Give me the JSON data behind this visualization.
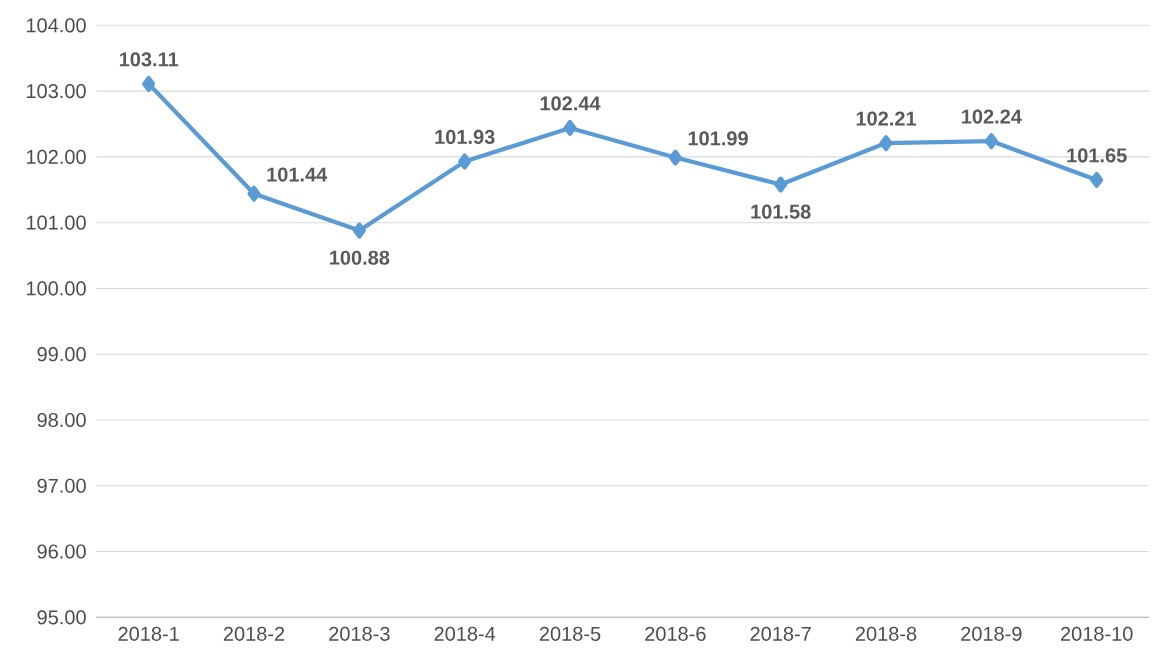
{
  "chart_data": {
    "type": "line",
    "categories": [
      "2018-1",
      "2018-2",
      "2018-3",
      "2018-4",
      "2018-5",
      "2018-6",
      "2018-7",
      "2018-8",
      "2018-9",
      "2018-10"
    ],
    "values": [
      103.11,
      101.44,
      100.88,
      101.93,
      102.44,
      101.99,
      101.58,
      102.21,
      102.24,
      101.65
    ],
    "color": "#5b9bd5",
    "marker": "diamond",
    "line_style": "solid",
    "data_labels": true,
    "grid": "y",
    "ylim": [
      95,
      104
    ],
    "yticks": [
      {
        "value": 95,
        "label": "95.00"
      },
      {
        "value": 96,
        "label": "96.00"
      },
      {
        "value": 97,
        "label": "97.00"
      },
      {
        "value": 98,
        "label": "98.00"
      },
      {
        "value": 99,
        "label": "99.00"
      },
      {
        "value": 100,
        "label": "100.00"
      },
      {
        "value": 101,
        "label": "101.00"
      },
      {
        "value": 102,
        "label": "102.00"
      },
      {
        "value": 103,
        "label": "103.00"
      },
      {
        "value": 104,
        "label": "104.00"
      }
    ]
  }
}
